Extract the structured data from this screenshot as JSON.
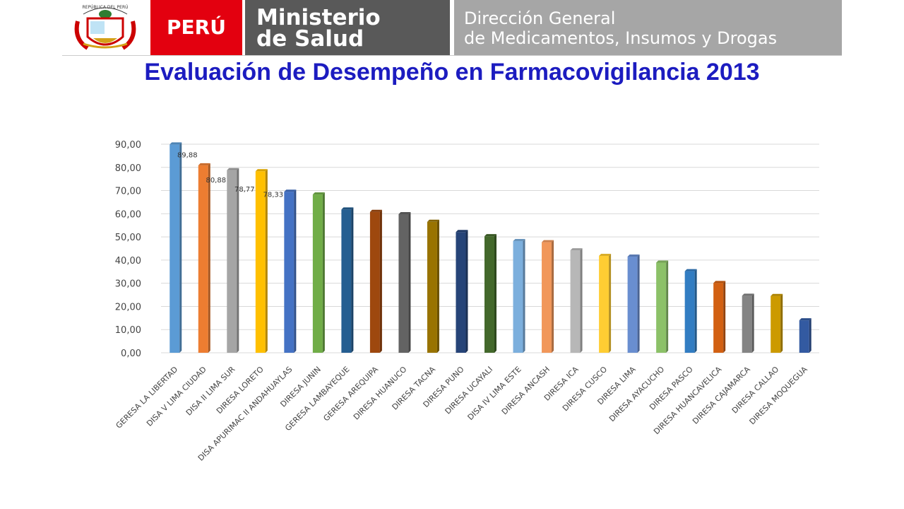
{
  "header": {
    "logo_text": "REPÚBLICA DEL PERÚ",
    "country": "PERÚ",
    "ministry": [
      "Ministerio",
      "de Salud"
    ],
    "directorate": [
      "Dirección General",
      "de Medicamentos, Insumos y Drogas"
    ]
  },
  "chart_data": {
    "type": "bar",
    "title": "Evaluación de Desempeño en Farmacovigilancia 2013",
    "categories": [
      "GERESA LA LIBERTAD",
      "DISA V LIMA CIUDAD",
      "DISA II LIMA SUR",
      "DIRESA LORETO",
      "DISA APURIMAC II ANDAHUAYLAS",
      "DIRESA JUNIN",
      "GERESA LAMBAYEQUE",
      "GERESA AREQUIPA",
      "DIRESA HUANUCO",
      "DIRESA TACNA",
      "DIRESA PUNO",
      "DIRESA UCAYALI",
      "DISA IV LIMA ESTE",
      "DIRESA ANCASH",
      "DIRESA ICA",
      "DIRESA CUSCO",
      "DIRESA LIMA",
      "DIRESA AYACUCHO",
      "DIRESA PASCO",
      "DIRESA HUANCAVELICA",
      "DIRESA CAJAMARCA",
      "DIRESA CALLAO",
      "DIRESA MOQUEGUA"
    ],
    "values": [
      89.88,
      80.88,
      78.77,
      78.33,
      69.5,
      68.3,
      61.8,
      60.8,
      59.8,
      56.5,
      52.1,
      50.3,
      48.2,
      47.7,
      44.2,
      41.8,
      41.5,
      38.9,
      35.2,
      30.1,
      24.6,
      24.5,
      14.0
    ],
    "value_labels": [
      "89,88",
      "80,88",
      "78,77",
      "78,33",
      null,
      null,
      null,
      null,
      null,
      null,
      null,
      null,
      null,
      null,
      null,
      null,
      null,
      null,
      null,
      null,
      null,
      null,
      null
    ],
    "colors": [
      "#5b9bd5",
      "#ed7d31",
      "#a5a5a5",
      "#ffc000",
      "#4472c4",
      "#70ad47",
      "#255e91",
      "#9e480e",
      "#636363",
      "#997300",
      "#264478",
      "#43682b",
      "#7cafdd",
      "#f1975a",
      "#b7b7b7",
      "#ffcd33",
      "#698ed0",
      "#8cc168",
      "#327dc2",
      "#d26012",
      "#848484",
      "#cc9a00",
      "#335aa1"
    ],
    "ylim": [
      0,
      90
    ],
    "yticks": [
      {
        "value": 0,
        "label": "0,00"
      },
      {
        "value": 10,
        "label": "10,00"
      },
      {
        "value": 20,
        "label": "20,00"
      },
      {
        "value": 30,
        "label": "30,00"
      },
      {
        "value": 40,
        "label": "40,00"
      },
      {
        "value": 50,
        "label": "50,00"
      },
      {
        "value": 60,
        "label": "60,00"
      },
      {
        "value": 70,
        "label": "70,00"
      },
      {
        "value": 80,
        "label": "80,00"
      },
      {
        "value": 90,
        "label": "90,00"
      }
    ],
    "grid": true
  }
}
